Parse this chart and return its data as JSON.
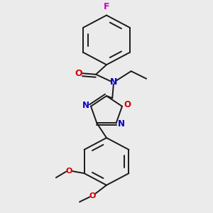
{
  "background_color": "#ebebeb",
  "bond_color": "#1a1a1a",
  "atom_colors": {
    "F": "#cc00cc",
    "O": "#cc0000",
    "N": "#0000cc",
    "C": "#1a1a1a"
  },
  "figsize": [
    3.0,
    3.0
  ],
  "dpi": 100
}
